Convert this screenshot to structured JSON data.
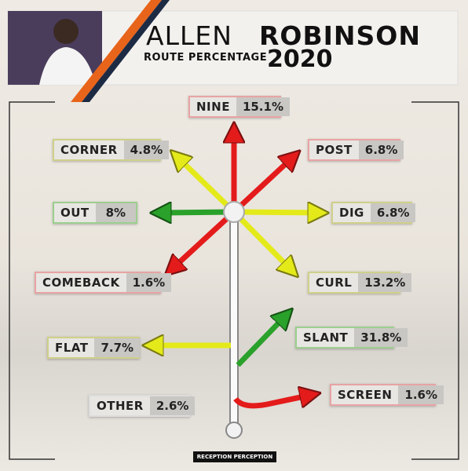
{
  "header": {
    "first_name": "ALLEN",
    "last_name": "ROBINSON",
    "subtitle": "ROUTE PERCENTAGE",
    "year": "2020"
  },
  "routes": [
    {
      "name": "NINE",
      "value": "15.1%"
    },
    {
      "name": "CORNER",
      "value": "4.8%"
    },
    {
      "name": "POST",
      "value": "6.8%"
    },
    {
      "name": "OUT",
      "value": "8%"
    },
    {
      "name": "DIG",
      "value": "6.8%"
    },
    {
      "name": "COMEBACK",
      "value": "1.6%"
    },
    {
      "name": "CURL",
      "value": "13.2%"
    },
    {
      "name": "SLANT",
      "value": "31.8%"
    },
    {
      "name": "FLAT",
      "value": "7.7%"
    },
    {
      "name": "OTHER",
      "value": "2.6%"
    },
    {
      "name": "SCREEN",
      "value": "1.6%"
    }
  ],
  "footer": {
    "logo": "RECEPTION PERCEPTION"
  }
}
